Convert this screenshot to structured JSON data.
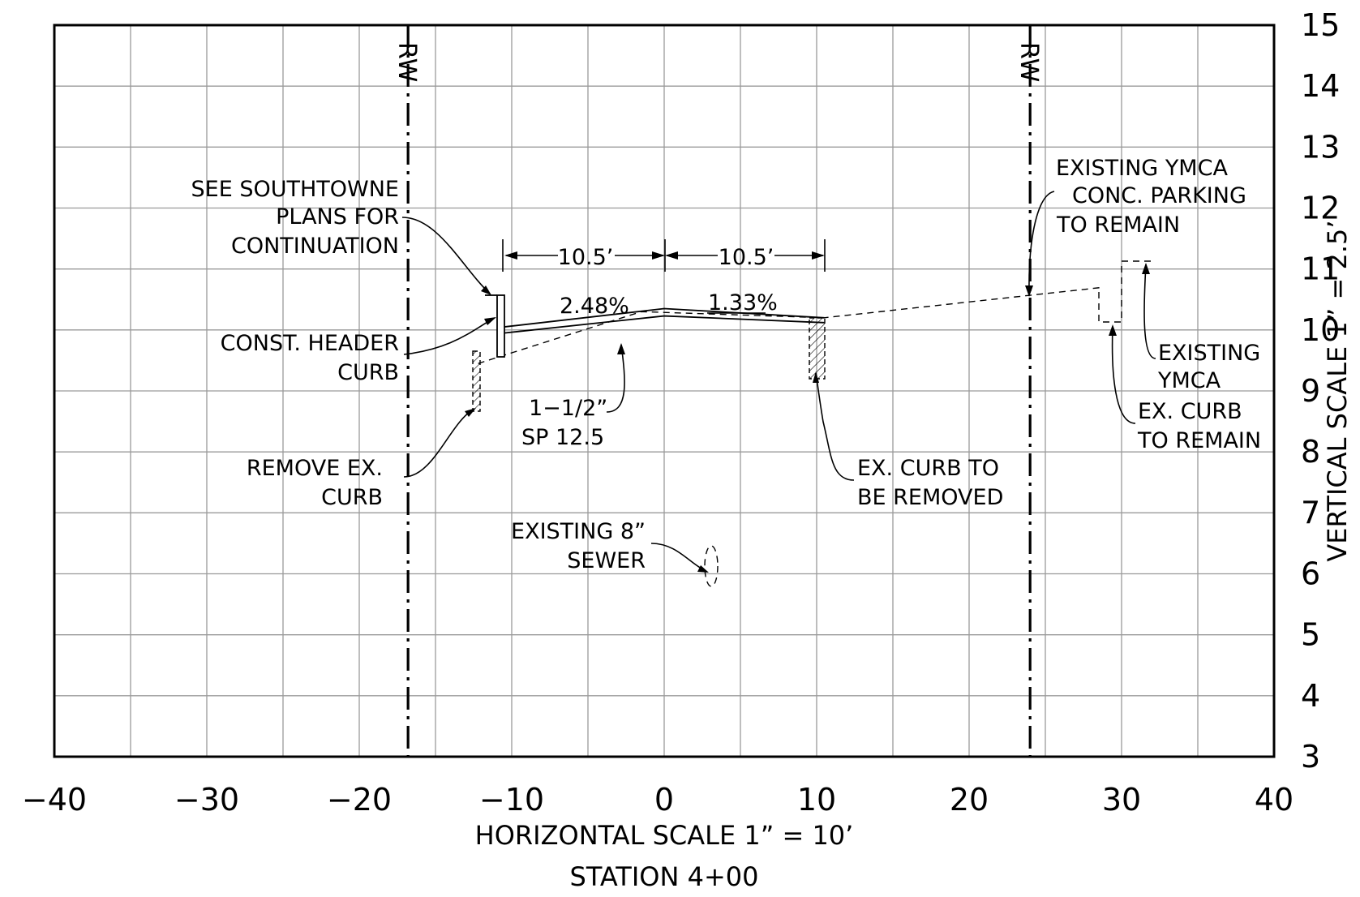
{
  "chart_data": {
    "type": "cross-section",
    "xlim": [
      -40,
      40
    ],
    "ylim": [
      3,
      15
    ],
    "x_ticks": [
      "−40",
      "−30",
      "−20",
      "−10",
      "0",
      "10",
      "20",
      "30",
      "40"
    ],
    "y_ticks": [
      "3",
      "4",
      "5",
      "6",
      "7",
      "8",
      "9",
      "10",
      "11",
      "12",
      "13",
      "14",
      "15"
    ],
    "xlabel": "HORIZONTAL SCALE 1” = 10’",
    "ylabel": "VERTICAL SCALE 1” = 2.5’",
    "title": "STATION 4+00",
    "right_of_way": [
      {
        "x": -16.8,
        "label": "RW"
      },
      {
        "x": 24,
        "label": "RW"
      }
    ],
    "proposed_surface": [
      [
        -10.5,
        10.05
      ],
      [
        0,
        10.35
      ],
      [
        10.5,
        10.2
      ]
    ],
    "proposed_base": [
      [
        -10.5,
        9.95
      ],
      [
        0,
        10.23
      ],
      [
        10.5,
        10.12
      ]
    ],
    "existing_ground": [
      [
        -12.2,
        9.45
      ],
      [
        -1.5,
        10.3
      ],
      [
        10.5,
        10.2
      ],
      [
        28.8,
        10.7
      ]
    ],
    "slopes": [
      {
        "label": "2.48%"
      },
      {
        "label": "1.33%"
      }
    ],
    "dimensions": [
      {
        "label": "10.5’"
      },
      {
        "label": "10.5’"
      }
    ],
    "notes": {
      "southtowne": [
        "SEE SOUTHTOWNE",
        "PLANS FOR",
        "CONTINUATION"
      ],
      "header_curb": [
        "CONST. HEADER",
        "CURB"
      ],
      "remove_curb": [
        "REMOVE EX.",
        "CURB"
      ],
      "pavement": [
        "1−1/2”",
        "SP 12.5"
      ],
      "sewer": [
        "EXISTING 8”",
        "SEWER"
      ],
      "curb_removed": [
        "EX. CURB TO",
        "BE REMOVED"
      ],
      "ymca_parking": [
        "EXISTING YMCA",
        "CONC. PARKING",
        "TO REMAIN"
      ],
      "ymca": [
        "EXISTING",
        "YMCA"
      ],
      "curb_remain": [
        "EX. CURB",
        "TO REMAIN"
      ]
    },
    "grid": true
  }
}
